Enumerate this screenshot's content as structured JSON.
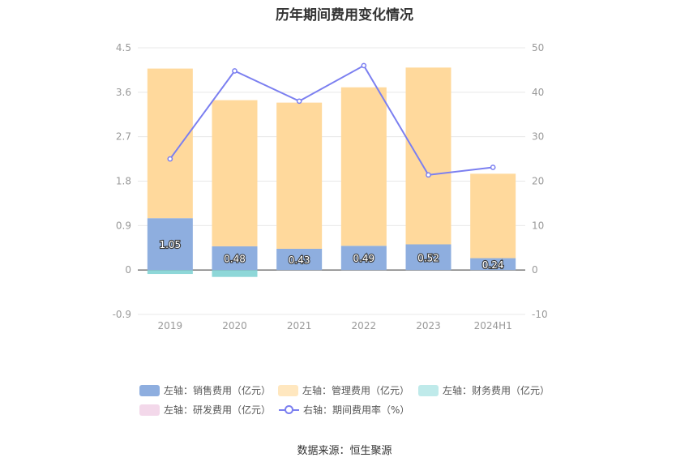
{
  "title": "历年期间费用变化情况",
  "source": "数据来源：恒生聚源",
  "colors": {
    "sales": "#8eaedf",
    "admin": "#ffd99c",
    "finance": "#8ed7d8",
    "rnd": "#f3d8ea",
    "rate": "#7b7ff0",
    "grid": "#e8e8e8",
    "axis_text": "#999999"
  },
  "legend": [
    {
      "label": "左轴：销售费用（亿元）",
      "color": "#8eaedf",
      "kind": "box"
    },
    {
      "label": "左轴：管理费用（亿元）",
      "color": "#ffe7bf",
      "kind": "box"
    },
    {
      "label": "左轴：财务费用（亿元）",
      "color": "#bfeaea",
      "kind": "box"
    },
    {
      "label": "左轴：研发费用（亿元）",
      "color": "#f3d8ea",
      "kind": "box"
    },
    {
      "label": "右轴：期间费用率（%）",
      "color": "#7b7ff0",
      "kind": "line"
    }
  ],
  "chart_data": {
    "type": "bar",
    "categories": [
      "2019",
      "2020",
      "2021",
      "2022",
      "2023",
      "2024H1"
    ],
    "y_left": {
      "min": -0.9,
      "max": 4.5,
      "ticks": [
        "4.5",
        "3.6",
        "2.7",
        "1.8",
        "0.9",
        "0",
        "-0.9"
      ]
    },
    "y_right": {
      "min": -10,
      "max": 50,
      "ticks": [
        "50",
        "40",
        "30",
        "20",
        "10",
        "0",
        "-10"
      ]
    },
    "series": [
      {
        "name": "左轴：销售费用（亿元）",
        "axis": "left",
        "stack": "cost",
        "values": [
          1.05,
          0.48,
          0.43,
          0.49,
          0.52,
          0.24
        ],
        "labels": [
          "1.05",
          "0.48",
          "0.43",
          "0.49",
          "0.52",
          "0.24"
        ]
      },
      {
        "name": "左轴：管理费用（亿元）",
        "axis": "left",
        "stack": "cost",
        "values": [
          3.03,
          2.96,
          2.96,
          3.21,
          3.58,
          1.71
        ]
      },
      {
        "name": "左轴：财务费用（亿元）",
        "axis": "left",
        "stack": "cost",
        "values": [
          -0.08,
          -0.14,
          0.0,
          0.0,
          0.0,
          0.0
        ]
      },
      {
        "name": "左轴：研发费用（亿元）",
        "axis": "left",
        "stack": "cost",
        "values": [
          0,
          0,
          0,
          0,
          0,
          0
        ]
      },
      {
        "name": "右轴：期间费用率（%）",
        "axis": "right",
        "type": "line",
        "values": [
          25.0,
          44.8,
          38.0,
          46.0,
          21.4,
          23.1
        ]
      }
    ],
    "grid": true,
    "legend_position": "bottom"
  }
}
